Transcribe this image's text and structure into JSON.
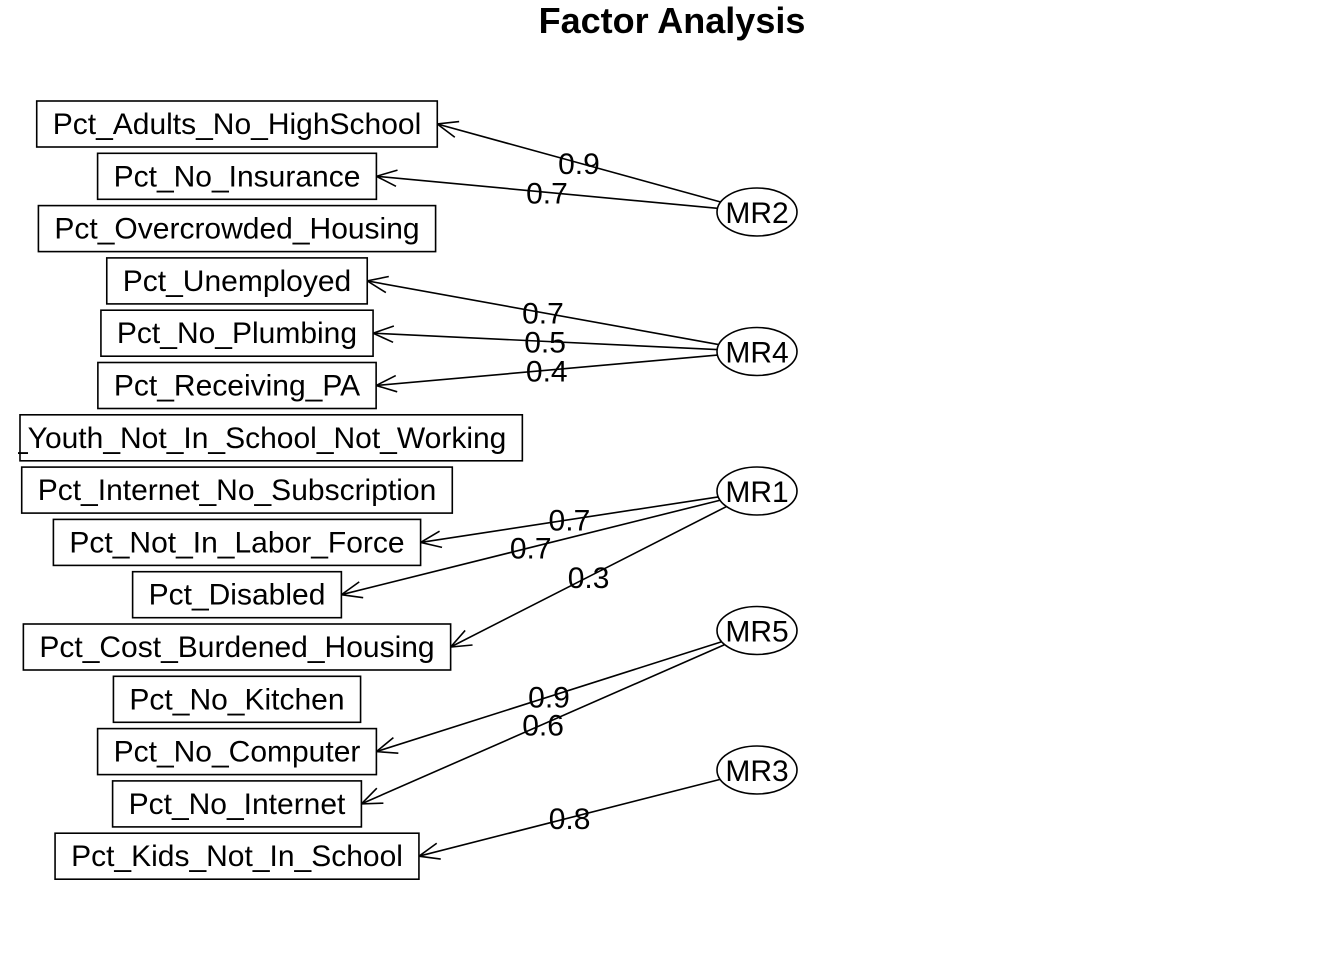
{
  "title": "Factor Analysis",
  "variables": [
    "Pct_Adults_No_HighSchool",
    "Pct_No_Insurance",
    "Pct_Overcrowded_Housing",
    "Pct_Unemployed",
    "Pct_No_Plumbing",
    "Pct_Receiving_PA",
    "Pct_Youth_Not_In_School_Not_Working",
    "Pct_Internet_No_Subscription",
    "Pct_Not_In_Labor_Force",
    "Pct_Disabled",
    "Pct_Cost_Burdened_Housing",
    "Pct_No_Kitchen",
    "Pct_No_Computer",
    "Pct_No_Internet",
    "Pct_Kids_Not_In_School"
  ],
  "factors": [
    "MR2",
    "MR4",
    "MR1",
    "MR5",
    "MR3"
  ],
  "loadings": [
    {
      "factor": "MR2",
      "variable": "Pct_Adults_No_HighSchool",
      "label": "0.9"
    },
    {
      "factor": "MR2",
      "variable": "Pct_No_Insurance",
      "label": "0.7"
    },
    {
      "factor": "MR4",
      "variable": "Pct_Unemployed",
      "label": "0.7"
    },
    {
      "factor": "MR4",
      "variable": "Pct_No_Plumbing",
      "label": "0.5"
    },
    {
      "factor": "MR4",
      "variable": "Pct_Receiving_PA",
      "label": "0.4"
    },
    {
      "factor": "MR1",
      "variable": "Pct_Not_In_Labor_Force",
      "label": "0.7"
    },
    {
      "factor": "MR1",
      "variable": "Pct_Disabled",
      "label": "0.7"
    },
    {
      "factor": "MR1",
      "variable": "Pct_Cost_Burdened_Housing",
      "label": "0.3"
    },
    {
      "factor": "MR5",
      "variable": "Pct_No_Computer",
      "label": "0.9"
    },
    {
      "factor": "MR5",
      "variable": "Pct_No_Internet",
      "label": "0.6"
    },
    {
      "factor": "MR3",
      "variable": "Pct_Kids_Not_In_School",
      "label": "0.8"
    }
  ]
}
